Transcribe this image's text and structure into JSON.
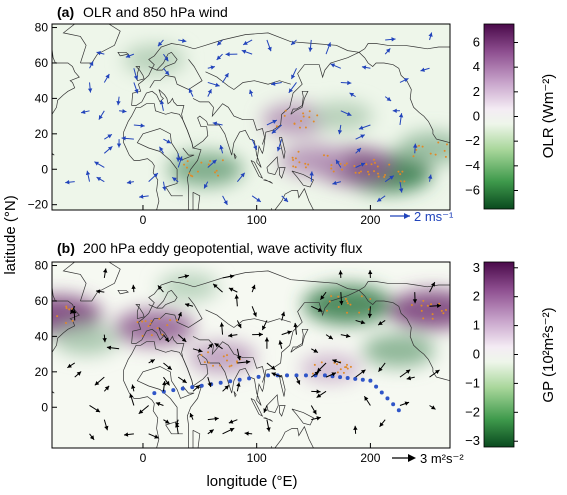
{
  "chart_data": [
    {
      "type": "heatmap",
      "panel": "(a)",
      "title": "OLR and 850 hPa wind",
      "xlim": [
        -80,
        270
      ],
      "ylim": [
        -23,
        82
      ],
      "x_ticks": [
        0,
        100,
        200
      ],
      "y_ticks": [
        -20,
        0,
        20,
        40,
        60,
        80
      ],
      "colorbar": {
        "label": "OLR (Wm⁻²)",
        "range": [
          -7.5,
          7.5
        ],
        "ticks": [
          6,
          4,
          2,
          0,
          -2,
          -4,
          -6
        ],
        "palette": "purple (positive) to green (negative)"
      },
      "vector_reference": {
        "label": "2 ms⁻¹",
        "color": "#2244bb"
      },
      "anomalies": [
        {
          "lon": 215,
          "lat": -2,
          "value": -6
        },
        {
          "lon": 185,
          "lat": 2,
          "value": 5
        },
        {
          "lon": 150,
          "lat": 5,
          "value": 3
        },
        {
          "lon": 135,
          "lat": 28,
          "value": 3
        },
        {
          "lon": 55,
          "lat": 0,
          "value": -4
        },
        {
          "lon": 255,
          "lat": 12,
          "value": -3
        },
        {
          "lon": 10,
          "lat": 62,
          "value": -2
        },
        {
          "lon": 175,
          "lat": 30,
          "value": -2
        }
      ]
    },
    {
      "type": "heatmap",
      "panel": "(b)",
      "title": "200 hPa eddy geopotential, wave activity flux",
      "xlim": [
        -80,
        270
      ],
      "ylim": [
        -23,
        82
      ],
      "x_ticks": [
        0,
        100,
        200
      ],
      "y_ticks": [
        0,
        20,
        40,
        60,
        80
      ],
      "colorbar": {
        "label": "GP (10²m²s⁻²)",
        "range": [
          -3.2,
          3.2
        ],
        "ticks": [
          3,
          2,
          1,
          0,
          -1,
          -2,
          -3
        ],
        "palette": "purple (positive) to green (negative)"
      },
      "vector_reference": {
        "label": "3 m²s⁻²",
        "color": "#000000"
      },
      "anomalies": [
        {
          "lon": -75,
          "lat": 52,
          "value": 2.5
        },
        {
          "lon": 10,
          "lat": 45,
          "value": 2
        },
        {
          "lon": 70,
          "lat": 28,
          "value": 1.2
        },
        {
          "lon": 165,
          "lat": 22,
          "value": 0.8
        },
        {
          "lon": 180,
          "lat": 58,
          "value": -2.5
        },
        {
          "lon": 255,
          "lat": 55,
          "value": 2.5
        },
        {
          "lon": -50,
          "lat": 38,
          "value": -1
        },
        {
          "lon": 225,
          "lat": 32,
          "value": -1.5
        },
        {
          "lon": 40,
          "lat": 68,
          "value": -0.8
        }
      ],
      "wave_train_path": [
        [
          10,
          8
        ],
        [
          60,
          13
        ],
        [
          110,
          18
        ],
        [
          160,
          18
        ],
        [
          200,
          15
        ],
        [
          230,
          -5
        ]
      ]
    }
  ],
  "labels": {
    "ylabel": "latitude (°N)",
    "xlabel": "longitude (°E)"
  }
}
